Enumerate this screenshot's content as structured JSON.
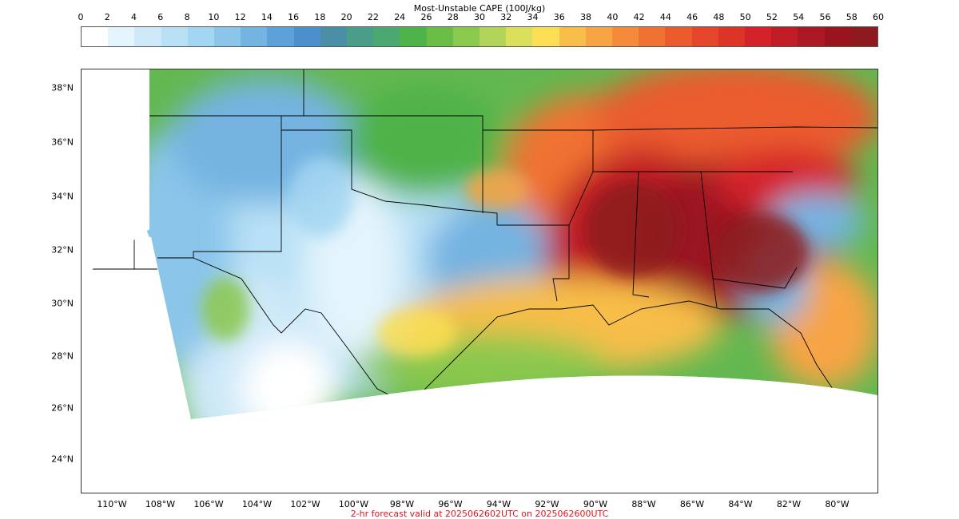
{
  "colorbar": {
    "title": "Most-Unstable CAPE (100J/kg)",
    "ticks": [
      "0",
      "2",
      "4",
      "6",
      "8",
      "10",
      "12",
      "14",
      "16",
      "18",
      "20",
      "22",
      "24",
      "26",
      "28",
      "30",
      "32",
      "34",
      "36",
      "38",
      "40",
      "42",
      "44",
      "46",
      "48",
      "50",
      "52",
      "54",
      "56",
      "58",
      "60"
    ],
    "colors": [
      "#ffffff",
      "#e4f4fc",
      "#cfe9f8",
      "#b9e1f6",
      "#a3d6f2",
      "#8bc6ea",
      "#74b4e1",
      "#5ea1d8",
      "#4c8fcc",
      "#4a8fa5",
      "#4a9d88",
      "#4aa870",
      "#4fb24a",
      "#6abd45",
      "#8bc84e",
      "#b3d45a",
      "#dbe05c",
      "#fcdf55",
      "#f7be4a",
      "#f7a444",
      "#f58a3a",
      "#f07232",
      "#eb5b2d",
      "#e5452a",
      "#dd3428",
      "#d4222a",
      "#bf1c26",
      "#ab1722",
      "#9a1420",
      "#8c1a1e"
    ]
  },
  "map": {
    "lat_labels": [
      "38°N",
      "36°N",
      "34°N",
      "32°N",
      "30°N",
      "28°N",
      "26°N",
      "24°N"
    ],
    "lon_labels": [
      "110°W",
      "108°W",
      "106°W",
      "104°W",
      "102°W",
      "100°W",
      "98°W",
      "96°W",
      "94°W",
      "92°W",
      "90°W",
      "88°W",
      "86°W",
      "84°W",
      "82°W",
      "80°W"
    ]
  },
  "footer": "2-hr forecast valid at 2025062602UTC on 2025062600UTC"
}
